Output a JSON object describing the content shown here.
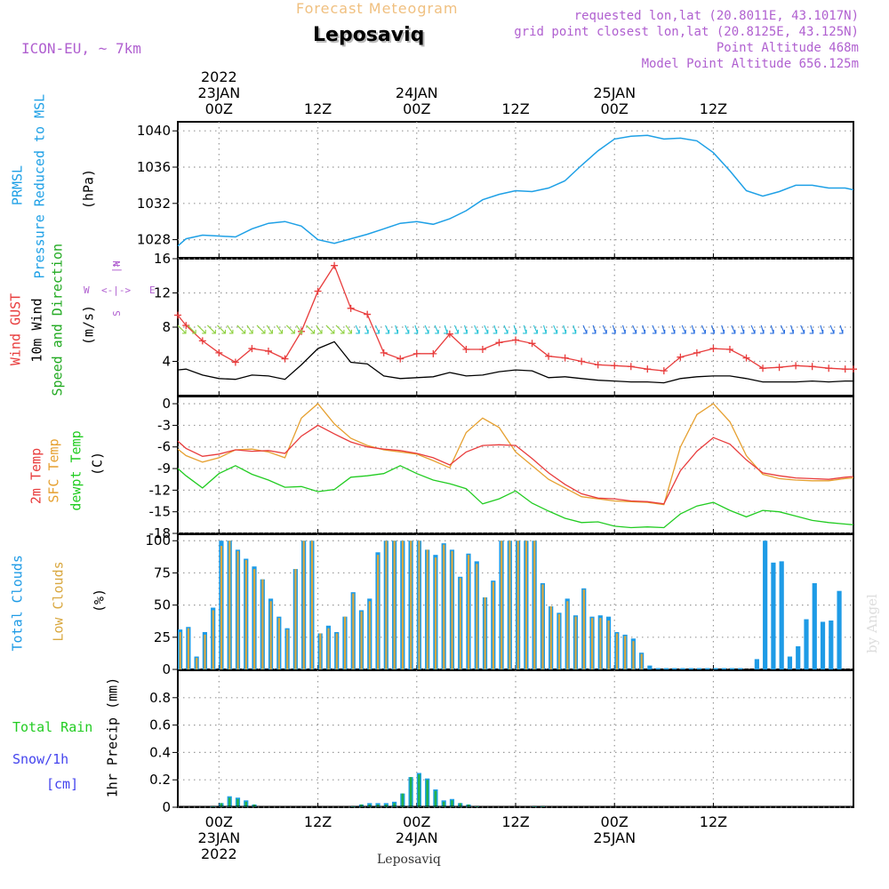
{
  "header": {
    "product": "Forecast Meteogram",
    "location": "Leposaviq",
    "model": "ICON-EU, ~ 7km",
    "requested": "requested lon,lat (20.8011E, 43.1017N)",
    "grid_point": "grid point closest lon,lat (20.8125E, 43.125N)",
    "point_alt": "Point Altitude 468m",
    "model_alt": "Model Point Altitude 656.125m"
  },
  "time_axis": {
    "top_year": "2022",
    "ticks": [
      {
        "label": "00Z",
        "date": "23JAN"
      },
      {
        "label": "12Z",
        "date": ""
      },
      {
        "label": "00Z",
        "date": "24JAN"
      },
      {
        "label": "12Z",
        "date": ""
      },
      {
        "label": "00Z",
        "date": "25JAN"
      },
      {
        "label": "12Z",
        "date": ""
      }
    ],
    "bottom_year": "2022"
  },
  "footer": {
    "station": "Leposaviq",
    "credit": "by Angel"
  },
  "labels": {
    "prmsl_a": "PRMSL",
    "prmsl_b": "Pressure Reduced to MSL",
    "prmsl_unit": "(hPa)",
    "gust": "Wind GUST",
    "wind10": "10m Wind",
    "winddir": "Speed and Direction",
    "wind_unit": "(m/s)",
    "compass_n": "N",
    "compass_s": "S",
    "compass_w": "W",
    "compass_e": "E",
    "temp2m": "2m Temp",
    "sfctemp": "SFC Temp",
    "dewpt": "dewpt Temp",
    "temp_unit": "(C)",
    "totcloud": "Total Clouds",
    "lowcloud": "Low Clouds",
    "cloud_unit": "(%)",
    "total_rain": "Total  Rain",
    "snow": "Snow/1h",
    "snow_unit": "[cm]",
    "precip": "1hr Precip (mm)"
  },
  "colors": {
    "pressure": "#1ea0e6",
    "gust": "#e83c3c",
    "wind": "#000000",
    "temp2m": "#e83c3c",
    "sfctemp": "#e6a030",
    "dewpt": "#22cc22",
    "totcloud": "#1e9be6",
    "lowcloud": "#d9a840",
    "rain": "#1ea0e6",
    "snow": "#22b14c",
    "purple": "#b060d0"
  },
  "chart_data": [
    {
      "type": "line",
      "title": "PRMSL",
      "ylabel": "(hPa)",
      "ylim": [
        1026,
        1041
      ],
      "yticks": [
        1028,
        1032,
        1036,
        1040
      ],
      "x_hours": [
        -5,
        -4,
        -2,
        0,
        2,
        4,
        6,
        8,
        10,
        12,
        14,
        16,
        18,
        20,
        22,
        24,
        26,
        28,
        30,
        32,
        34,
        36,
        38,
        40,
        42,
        44,
        46,
        48,
        50,
        52,
        54,
        56,
        58,
        60,
        62,
        64,
        66,
        68,
        70,
        72,
        74,
        76,
        77
      ],
      "series": [
        {
          "values": [
            1027.3,
            1028.1,
            1028.5,
            1028.4,
            1028.3,
            1029.2,
            1029.8,
            1030.0,
            1029.5,
            1028.0,
            1027.6,
            1028.1,
            1028.6,
            1029.2,
            1029.8,
            1030.0,
            1029.7,
            1030.3,
            1031.2,
            1032.4,
            1033.0,
            1033.4,
            1033.3,
            1033.7,
            1034.5,
            1036.2,
            1037.8,
            1039.1,
            1039.4,
            1039.5,
            1039.1,
            1039.2,
            1038.9,
            1037.6,
            1035.6,
            1033.4,
            1032.8,
            1033.3,
            1034.0,
            1034.0,
            1033.7,
            1033.7,
            1033.5
          ]
        }
      ]
    },
    {
      "type": "line",
      "title": "Wind",
      "ylabel": "(m/s)",
      "ylim": [
        0,
        16
      ],
      "yticks": [
        4,
        8,
        12,
        16
      ],
      "x_hours": [
        -5,
        -4,
        -2,
        0,
        2,
        4,
        6,
        8,
        10,
        12,
        14,
        16,
        18,
        20,
        22,
        24,
        26,
        28,
        30,
        32,
        34,
        36,
        38,
        40,
        42,
        44,
        46,
        48,
        50,
        52,
        54,
        56,
        58,
        60,
        62,
        64,
        66,
        68,
        70,
        72,
        74,
        76,
        77
      ],
      "series": [
        {
          "name": "Wind GUST",
          "values": [
            9.4,
            8.2,
            6.4,
            5.0,
            3.9,
            5.5,
            5.2,
            4.3,
            7.5,
            12.2,
            15.2,
            10.2,
            9.5,
            5.0,
            4.3,
            4.9,
            4.9,
            7.2,
            5.4,
            5.4,
            6.2,
            6.5,
            6.1,
            4.6,
            4.4,
            4.0,
            3.6,
            3.5,
            3.4,
            3.1,
            2.9,
            4.5,
            5.0,
            5.5,
            5.4,
            4.4,
            3.2,
            3.3,
            3.5,
            3.4,
            3.2,
            3.1,
            3.1
          ]
        },
        {
          "name": "10m Wind",
          "values": [
            3.0,
            3.1,
            2.4,
            2.0,
            1.9,
            2.4,
            2.3,
            1.9,
            3.6,
            5.5,
            6.3,
            3.9,
            3.7,
            2.3,
            2.0,
            2.1,
            2.2,
            2.7,
            2.3,
            2.4,
            2.8,
            3.0,
            2.9,
            2.1,
            2.2,
            2.0,
            1.8,
            1.7,
            1.6,
            1.6,
            1.5,
            2.0,
            2.2,
            2.3,
            2.3,
            2.0,
            1.6,
            1.6,
            1.6,
            1.7,
            1.6,
            1.7,
            1.7
          ]
        }
      ]
    },
    {
      "type": "line",
      "title": "Temperature",
      "ylabel": "(C)",
      "ylim": [
        -18,
        1
      ],
      "yticks": [
        -18,
        -15,
        -12,
        -9,
        -6,
        -3,
        0
      ],
      "x_hours": [
        -5,
        -4,
        -2,
        0,
        2,
        4,
        6,
        8,
        10,
        12,
        14,
        16,
        18,
        20,
        22,
        24,
        26,
        28,
        30,
        32,
        34,
        36,
        38,
        40,
        42,
        44,
        46,
        48,
        50,
        52,
        54,
        56,
        58,
        60,
        62,
        64,
        66,
        68,
        70,
        72,
        74,
        76,
        77
      ],
      "series": [
        {
          "name": "2m Temp",
          "values": [
            -5.2,
            -6.2,
            -7.3,
            -7.0,
            -6.4,
            -6.6,
            -6.5,
            -6.9,
            -4.5,
            -3.0,
            -4.2,
            -5.3,
            -6.0,
            -6.3,
            -6.5,
            -6.9,
            -7.5,
            -8.5,
            -6.7,
            -5.8,
            -5.7,
            -5.8,
            -7.6,
            -9.6,
            -11.2,
            -12.5,
            -13.1,
            -13.2,
            -13.5,
            -13.6,
            -13.9,
            -9.3,
            -6.6,
            -4.7,
            -5.6,
            -7.8,
            -9.6,
            -10.0,
            -10.3,
            -10.4,
            -10.5,
            -10.2,
            -10.1
          ]
        },
        {
          "name": "SFC Temp",
          "values": [
            -6.3,
            -7.2,
            -8.1,
            -7.5,
            -6.4,
            -6.3,
            -6.7,
            -7.5,
            -2.0,
            0.0,
            -2.8,
            -4.8,
            -5.8,
            -6.4,
            -6.7,
            -7.0,
            -7.9,
            -8.9,
            -4.0,
            -2.0,
            -3.3,
            -6.7,
            -8.6,
            -10.5,
            -11.7,
            -12.9,
            -13.2,
            -13.5,
            -13.6,
            -13.7,
            -14.0,
            -6.0,
            -1.5,
            0.0,
            -2.5,
            -7.2,
            -9.8,
            -10.4,
            -10.6,
            -10.7,
            -10.7,
            -10.4,
            -10.3
          ]
        },
        {
          "name": "dewpt Temp",
          "values": [
            -9.0,
            -10.0,
            -11.7,
            -9.7,
            -8.6,
            -9.8,
            -10.6,
            -11.6,
            -11.5,
            -12.2,
            -11.9,
            -10.2,
            -10.0,
            -9.7,
            -8.6,
            -9.7,
            -10.6,
            -11.1,
            -11.8,
            -13.9,
            -13.2,
            -12.1,
            -13.8,
            -14.9,
            -15.9,
            -16.5,
            -16.4,
            -17.0,
            -17.2,
            -17.1,
            -17.2,
            -15.3,
            -14.2,
            -13.7,
            -14.8,
            -15.7,
            -14.8,
            -15.0,
            -15.6,
            -16.2,
            -16.5,
            -16.7,
            -16.8
          ]
        }
      ]
    },
    {
      "type": "bar",
      "title": "Clouds",
      "ylabel": "(%)",
      "ylim": [
        0,
        105
      ],
      "yticks": [
        0,
        25,
        50,
        75,
        100
      ],
      "x_start_hour": -5,
      "series": [
        {
          "name": "Total Clouds",
          "values": [
            31,
            33,
            10,
            29,
            48,
            100,
            100,
            93,
            86,
            80,
            70,
            55,
            41,
            32,
            78,
            100,
            100,
            28,
            34,
            29,
            41,
            60,
            46,
            55,
            91,
            100,
            100,
            100,
            100,
            100,
            93,
            89,
            98,
            93,
            72,
            90,
            84,
            56,
            69,
            100,
            100,
            100,
            100,
            100,
            67,
            49,
            44,
            55,
            42,
            63,
            41,
            42,
            41,
            29,
            27,
            24,
            13,
            3,
            1,
            1,
            1,
            1,
            1,
            1,
            1,
            1,
            1,
            1,
            1,
            0,
            8,
            100,
            83,
            84,
            10,
            18,
            39,
            67,
            37,
            38,
            61
          ]
        },
        {
          "name": "Low Clouds",
          "values": [
            29,
            32,
            9,
            27,
            46,
            96,
            100,
            92,
            85,
            78,
            70,
            53,
            40,
            31,
            78,
            100,
            100,
            28,
            32,
            28,
            41,
            59,
            45,
            53,
            89,
            100,
            100,
            100,
            100,
            100,
            93,
            87,
            97,
            92,
            71,
            89,
            82,
            56,
            68,
            100,
            100,
            100,
            100,
            100,
            66,
            49,
            43,
            53,
            41,
            62,
            40,
            40,
            38,
            28,
            26,
            22,
            12,
            0,
            0,
            0,
            0,
            0,
            0,
            0,
            0,
            0,
            0,
            0,
            0,
            0,
            0,
            0,
            0,
            0,
            0,
            0,
            0,
            0,
            0,
            0,
            0
          ]
        }
      ]
    },
    {
      "type": "bar",
      "title": "1hr Precip",
      "ylabel": "1hr Precip (mm)",
      "ylim": [
        0,
        1.0
      ],
      "yticks": [
        0,
        0.2,
        0.4,
        0.6,
        0.8
      ],
      "x_start_hour": -5,
      "series": [
        {
          "name": "Total Rain",
          "values": [
            0,
            0,
            0,
            0,
            0.01,
            0.03,
            0.08,
            0.07,
            0.05,
            0.02,
            0,
            0,
            0,
            0,
            0,
            0,
            0,
            0,
            0,
            0,
            0,
            0.01,
            0.02,
            0.03,
            0.03,
            0.03,
            0.04,
            0.1,
            0.22,
            0.25,
            0.21,
            0.13,
            0.05,
            0.06,
            0.03,
            0.02,
            0.01,
            0,
            0,
            0,
            0,
            0,
            0,
            0.01,
            0.01,
            0,
            0,
            0,
            0,
            0,
            0,
            0,
            0,
            0,
            0,
            0,
            0,
            0,
            0,
            0,
            0,
            0,
            0,
            0,
            0,
            0,
            0,
            0,
            0,
            0,
            0,
            0,
            0,
            0,
            0,
            0,
            0,
            0,
            0,
            0,
            0
          ]
        },
        {
          "name": "Snow/1h",
          "values": [
            0,
            0,
            0,
            0,
            0.01,
            0.03,
            0.07,
            0.06,
            0.04,
            0.02,
            0,
            0,
            0,
            0,
            0,
            0,
            0,
            0,
            0,
            0,
            0,
            0.01,
            0.02,
            0.02,
            0.02,
            0.02,
            0.03,
            0.1,
            0.22,
            0.24,
            0.2,
            0.12,
            0.04,
            0.05,
            0.03,
            0.02,
            0.01,
            0,
            0,
            0,
            0,
            0,
            0,
            0.01,
            0.01,
            0,
            0,
            0,
            0,
            0,
            0,
            0,
            0,
            0,
            0,
            0,
            0,
            0,
            0,
            0,
            0,
            0,
            0,
            0,
            0,
            0,
            0,
            0,
            0,
            0,
            0,
            0,
            0,
            0,
            0,
            0,
            0,
            0,
            0,
            0,
            0
          ]
        }
      ]
    }
  ]
}
